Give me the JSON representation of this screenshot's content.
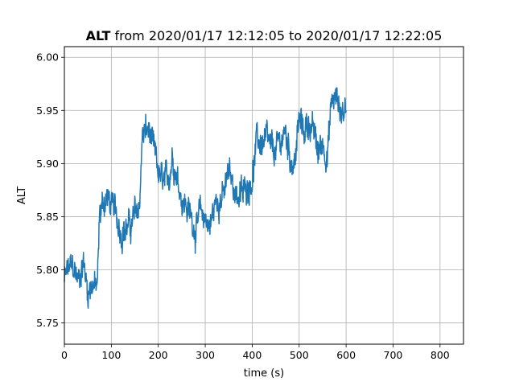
{
  "chart_data": {
    "type": "line",
    "title_bold": "ALT",
    "title_rest": " from 2020/01/17 12:12:05 to 2020/01/17 12:22:05",
    "xlabel": "time (s)",
    "ylabel": "ALT",
    "xlim": [
      0,
      850
    ],
    "ylim": [
      5.73,
      6.01
    ],
    "xticks": [
      0,
      100,
      200,
      300,
      400,
      500,
      600,
      700,
      800
    ],
    "yticks": [
      5.75,
      5.8,
      5.85,
      5.9,
      5.95,
      6.0
    ],
    "xtick_labels": [
      "0",
      "100",
      "200",
      "300",
      "400",
      "500",
      "600",
      "700",
      "800"
    ],
    "ytick_labels": [
      "5.75",
      "5.80",
      "5.85",
      "5.90",
      "5.95",
      "6.00"
    ],
    "grid": true,
    "line_color": "#1f77b4",
    "series": [
      {
        "x": [
          0,
          10,
          20,
          30,
          40,
          50,
          60,
          70,
          75,
          80,
          90,
          100,
          110,
          120,
          130,
          140,
          150,
          160,
          165,
          170,
          180,
          190,
          200,
          210,
          220,
          230,
          240,
          250,
          260,
          270,
          280,
          290,
          300,
          310,
          320,
          330,
          340,
          350,
          360,
          370,
          380,
          390,
          400,
          410,
          420,
          430,
          440,
          450,
          460,
          470,
          480,
          490,
          500,
          510,
          520,
          530,
          540,
          550,
          560,
          570,
          580,
          590,
          600
        ],
        "y": [
          5.79,
          5.8,
          5.8,
          5.79,
          5.81,
          5.78,
          5.79,
          5.78,
          5.85,
          5.86,
          5.87,
          5.86,
          5.85,
          5.84,
          5.84,
          5.84,
          5.85,
          5.86,
          5.92,
          5.93,
          5.93,
          5.91,
          5.89,
          5.88,
          5.88,
          5.91,
          5.89,
          5.87,
          5.86,
          5.85,
          5.84,
          5.85,
          5.85,
          5.84,
          5.86,
          5.87,
          5.87,
          5.89,
          5.88,
          5.87,
          5.87,
          5.88,
          5.89,
          5.92,
          5.92,
          5.92,
          5.91,
          5.91,
          5.92,
          5.93,
          5.91,
          5.9,
          5.94,
          5.93,
          5.94,
          5.93,
          5.91,
          5.92,
          5.91,
          5.96,
          5.96,
          5.95,
          5.95
        ]
      }
    ]
  }
}
